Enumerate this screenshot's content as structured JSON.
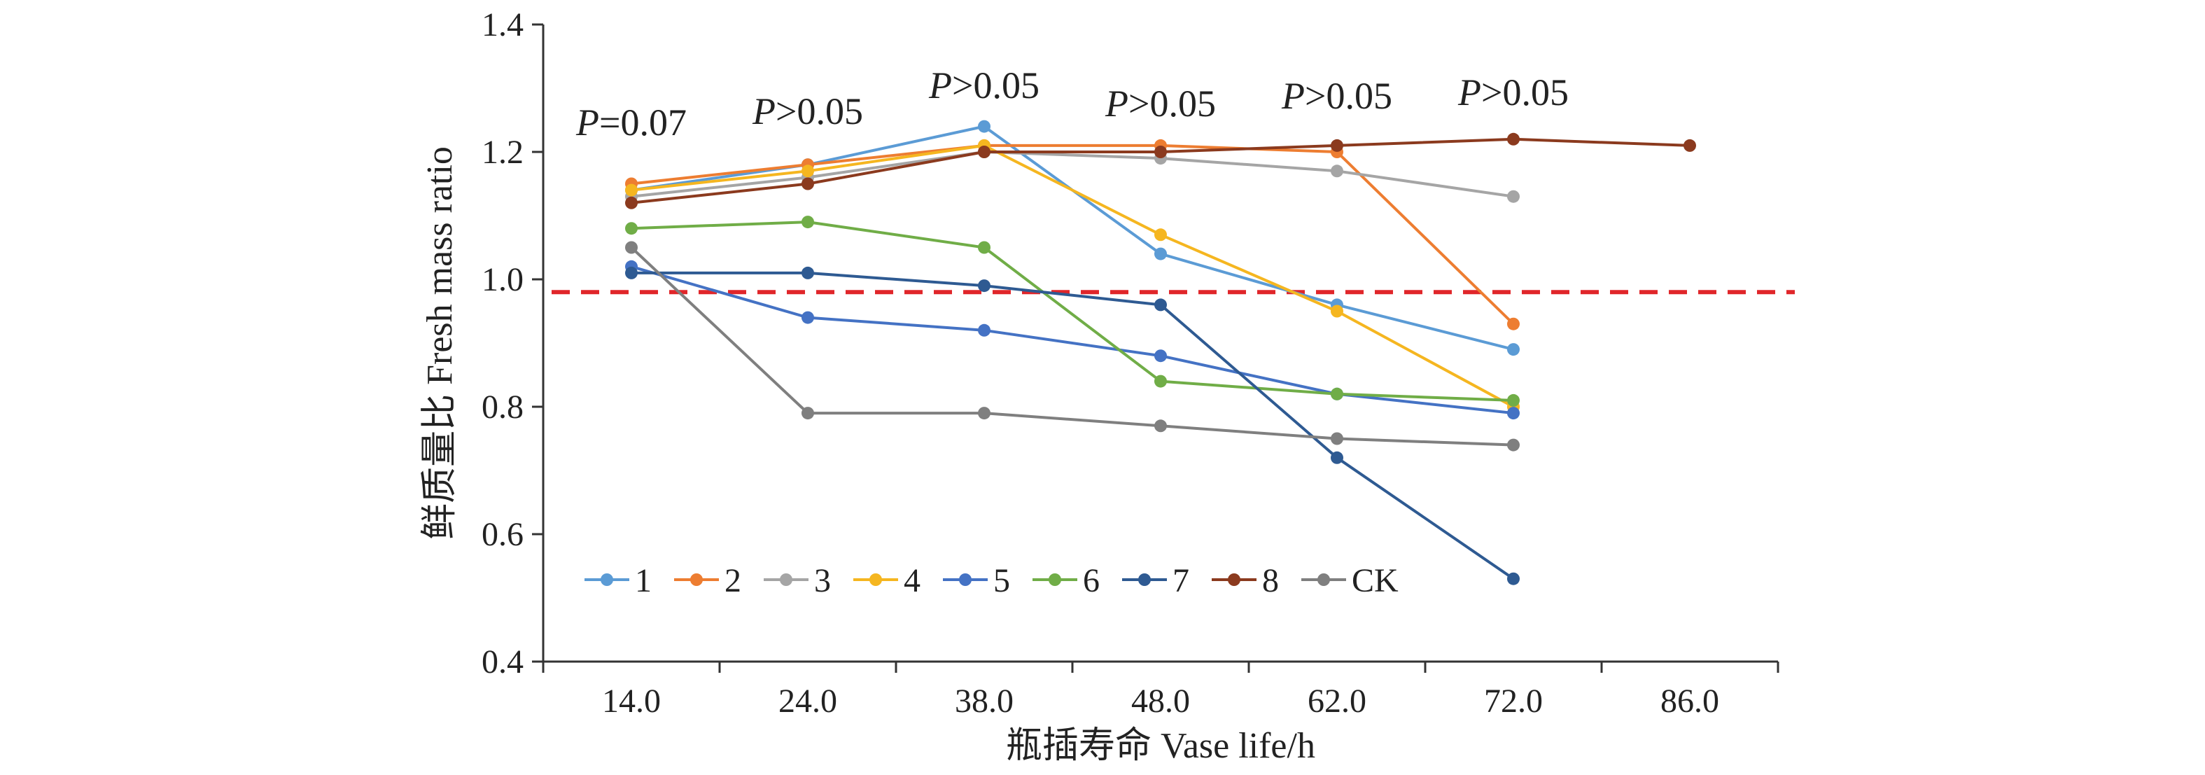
{
  "chart_data": {
    "type": "line",
    "title": "",
    "xlabel": "瓶插寿命 Vase life/h",
    "ylabel": "鲜质量比 Fresh mass ratio",
    "categories": [
      "14.0",
      "24.0",
      "38.0",
      "48.0",
      "62.0",
      "72.0",
      "86.0"
    ],
    "ylim": [
      0.4,
      1.4
    ],
    "yticks": [
      "0.4",
      "0.6",
      "0.8",
      "1.0",
      "1.2",
      "1.4"
    ],
    "grid": false,
    "legend_position": "bottom-left",
    "reference_line": {
      "y": 0.98,
      "style": "dashed",
      "color": "#e0262a"
    },
    "annotations": [
      {
        "category": "14.0",
        "p": "P",
        "rest": "=0.07"
      },
      {
        "category": "24.0",
        "p": "P",
        "rest": ">0.05"
      },
      {
        "category": "38.0",
        "p": "P",
        "rest": ">0.05"
      },
      {
        "category": "48.0",
        "p": "P",
        "rest": ">0.05"
      },
      {
        "category": "62.0",
        "p": "P",
        "rest": ">0.05"
      },
      {
        "category": "72.0",
        "p": "P",
        "rest": ">0.05"
      }
    ],
    "series": [
      {
        "name": "1",
        "color": "#5b9bd5",
        "values": [
          1.14,
          1.18,
          1.24,
          1.04,
          0.96,
          0.89,
          null
        ]
      },
      {
        "name": "2",
        "color": "#ed7d31",
        "values": [
          1.15,
          1.18,
          1.21,
          1.21,
          1.2,
          0.93,
          null
        ]
      },
      {
        "name": "3",
        "color": "#a5a5a5",
        "values": [
          1.13,
          1.16,
          1.2,
          1.19,
          1.17,
          1.13,
          null
        ]
      },
      {
        "name": "4",
        "color": "#f5b620",
        "values": [
          1.14,
          1.17,
          1.21,
          1.07,
          0.95,
          0.8,
          null
        ]
      },
      {
        "name": "5",
        "color": "#4472c4",
        "values": [
          1.02,
          0.94,
          0.92,
          0.88,
          0.82,
          0.79,
          null
        ]
      },
      {
        "name": "6",
        "color": "#70ad47",
        "values": [
          1.08,
          1.09,
          1.05,
          0.84,
          0.82,
          0.81,
          null
        ]
      },
      {
        "name": "7",
        "color": "#2e5a92",
        "values": [
          1.01,
          1.01,
          0.99,
          0.96,
          0.72,
          0.53,
          null
        ]
      },
      {
        "name": "8",
        "color": "#8b3a1e",
        "values": [
          1.12,
          1.15,
          1.2,
          1.2,
          1.21,
          1.22,
          1.21
        ]
      },
      {
        "name": "CK",
        "color": "#7f7f7f",
        "values": [
          1.05,
          0.79,
          0.79,
          0.77,
          0.75,
          0.74,
          null
        ]
      }
    ]
  }
}
